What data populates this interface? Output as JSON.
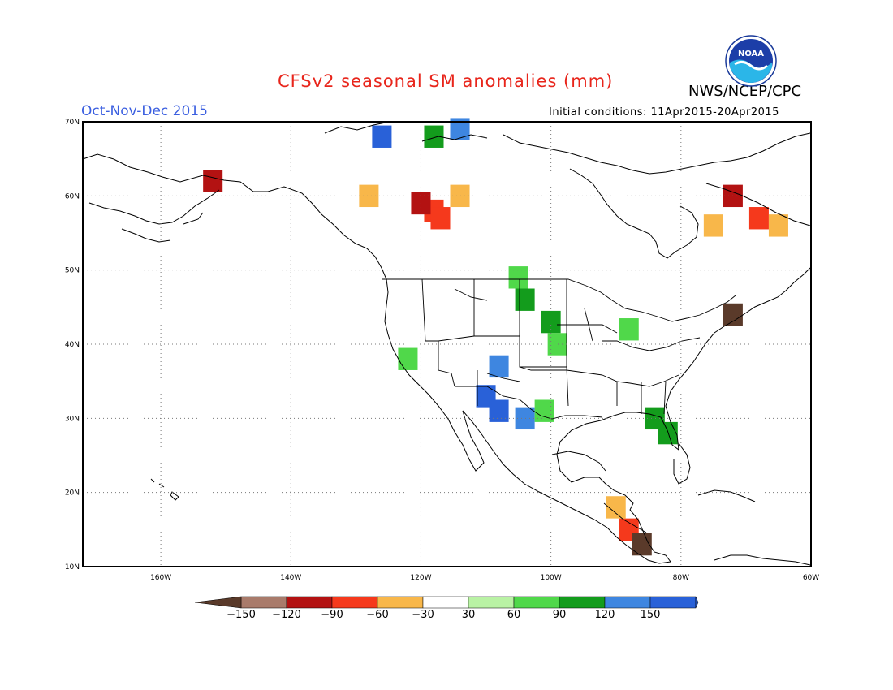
{
  "header": {
    "title": "CFSv2 seasonal SM anomalies (mm)",
    "agency": "NWS/NCEP/CPC",
    "period": "Oct-Nov-Dec 2015",
    "initial_conditions": "Initial conditions: 11Apr2015-20Apr2015",
    "logo_text": "NOAA"
  },
  "map": {
    "projection": "lat-lon",
    "lon_range": [
      -172,
      -60
    ],
    "lat_range": [
      10,
      70
    ],
    "lat_ticks": [
      "10N",
      "20N",
      "30N",
      "40N",
      "50N",
      "60N",
      "70N"
    ],
    "lon_ticks": [
      "160W",
      "140W",
      "120W",
      "100W",
      "80W",
      "60W"
    ],
    "grid": "dotted"
  },
  "colorbar": {
    "labels": [
      "-150",
      "-120",
      "-90",
      "-60",
      "-30",
      "30",
      "60",
      "90",
      "120",
      "150"
    ],
    "colors": [
      "#5a3a2a",
      "#a97b6b",
      "#b31212",
      "#f5391c",
      "#f8b74a",
      "#ffffff",
      "#b9f2a4",
      "#50d84a",
      "#139c1c",
      "#3e86e0",
      "#2961d8"
    ]
  },
  "chart_data": {
    "type": "heatmap",
    "title": "CFSv2 seasonal SM anomalies (mm)",
    "units": "mm",
    "regions": [
      {
        "lon": -118,
        "lat": 58,
        "anomaly": -90
      },
      {
        "lon": -117,
        "lat": 57,
        "anomaly": -90
      },
      {
        "lon": -120,
        "lat": 59,
        "anomaly": -120
      },
      {
        "lon": -114,
        "lat": 60,
        "anomaly": -60
      },
      {
        "lon": -128,
        "lat": 60,
        "anomaly": -60
      },
      {
        "lon": -68,
        "lat": 57,
        "anomaly": -90
      },
      {
        "lon": -65,
        "lat": 56,
        "anomaly": -60
      },
      {
        "lon": -72,
        "lat": 60,
        "anomaly": -120
      },
      {
        "lon": -75,
        "lat": 56,
        "anomaly": -60
      },
      {
        "lon": -105,
        "lat": 49,
        "anomaly": 60
      },
      {
        "lon": -104,
        "lat": 46,
        "anomaly": 90
      },
      {
        "lon": -100,
        "lat": 43,
        "anomaly": 90
      },
      {
        "lon": -99,
        "lat": 40,
        "anomaly": 60
      },
      {
        "lon": -108,
        "lat": 37,
        "anomaly": 120
      },
      {
        "lon": -110,
        "lat": 33,
        "anomaly": 150
      },
      {
        "lon": -108,
        "lat": 31,
        "anomaly": 150
      },
      {
        "lon": -104,
        "lat": 30,
        "anomaly": 120
      },
      {
        "lon": -101,
        "lat": 31,
        "anomaly": 60
      },
      {
        "lon": -88,
        "lat": 42,
        "anomaly": 60
      },
      {
        "lon": -84,
        "lat": 30,
        "anomaly": 90
      },
      {
        "lon": -82,
        "lat": 28,
        "anomaly": 90
      },
      {
        "lon": -122,
        "lat": 38,
        "anomaly": 60
      },
      {
        "lon": -88,
        "lat": 15,
        "anomaly": -90
      },
      {
        "lon": -86,
        "lat": 13,
        "anomaly": -150
      },
      {
        "lon": -90,
        "lat": 18,
        "anomaly": -60
      },
      {
        "lon": -72,
        "lat": 44,
        "anomaly": -150
      },
      {
        "lon": -114,
        "lat": 69,
        "anomaly": 120
      },
      {
        "lon": -118,
        "lat": 68,
        "anomaly": 90
      },
      {
        "lon": -126,
        "lat": 68,
        "anomaly": 150
      },
      {
        "lon": -152,
        "lat": 62,
        "anomaly": -120
      }
    ]
  }
}
